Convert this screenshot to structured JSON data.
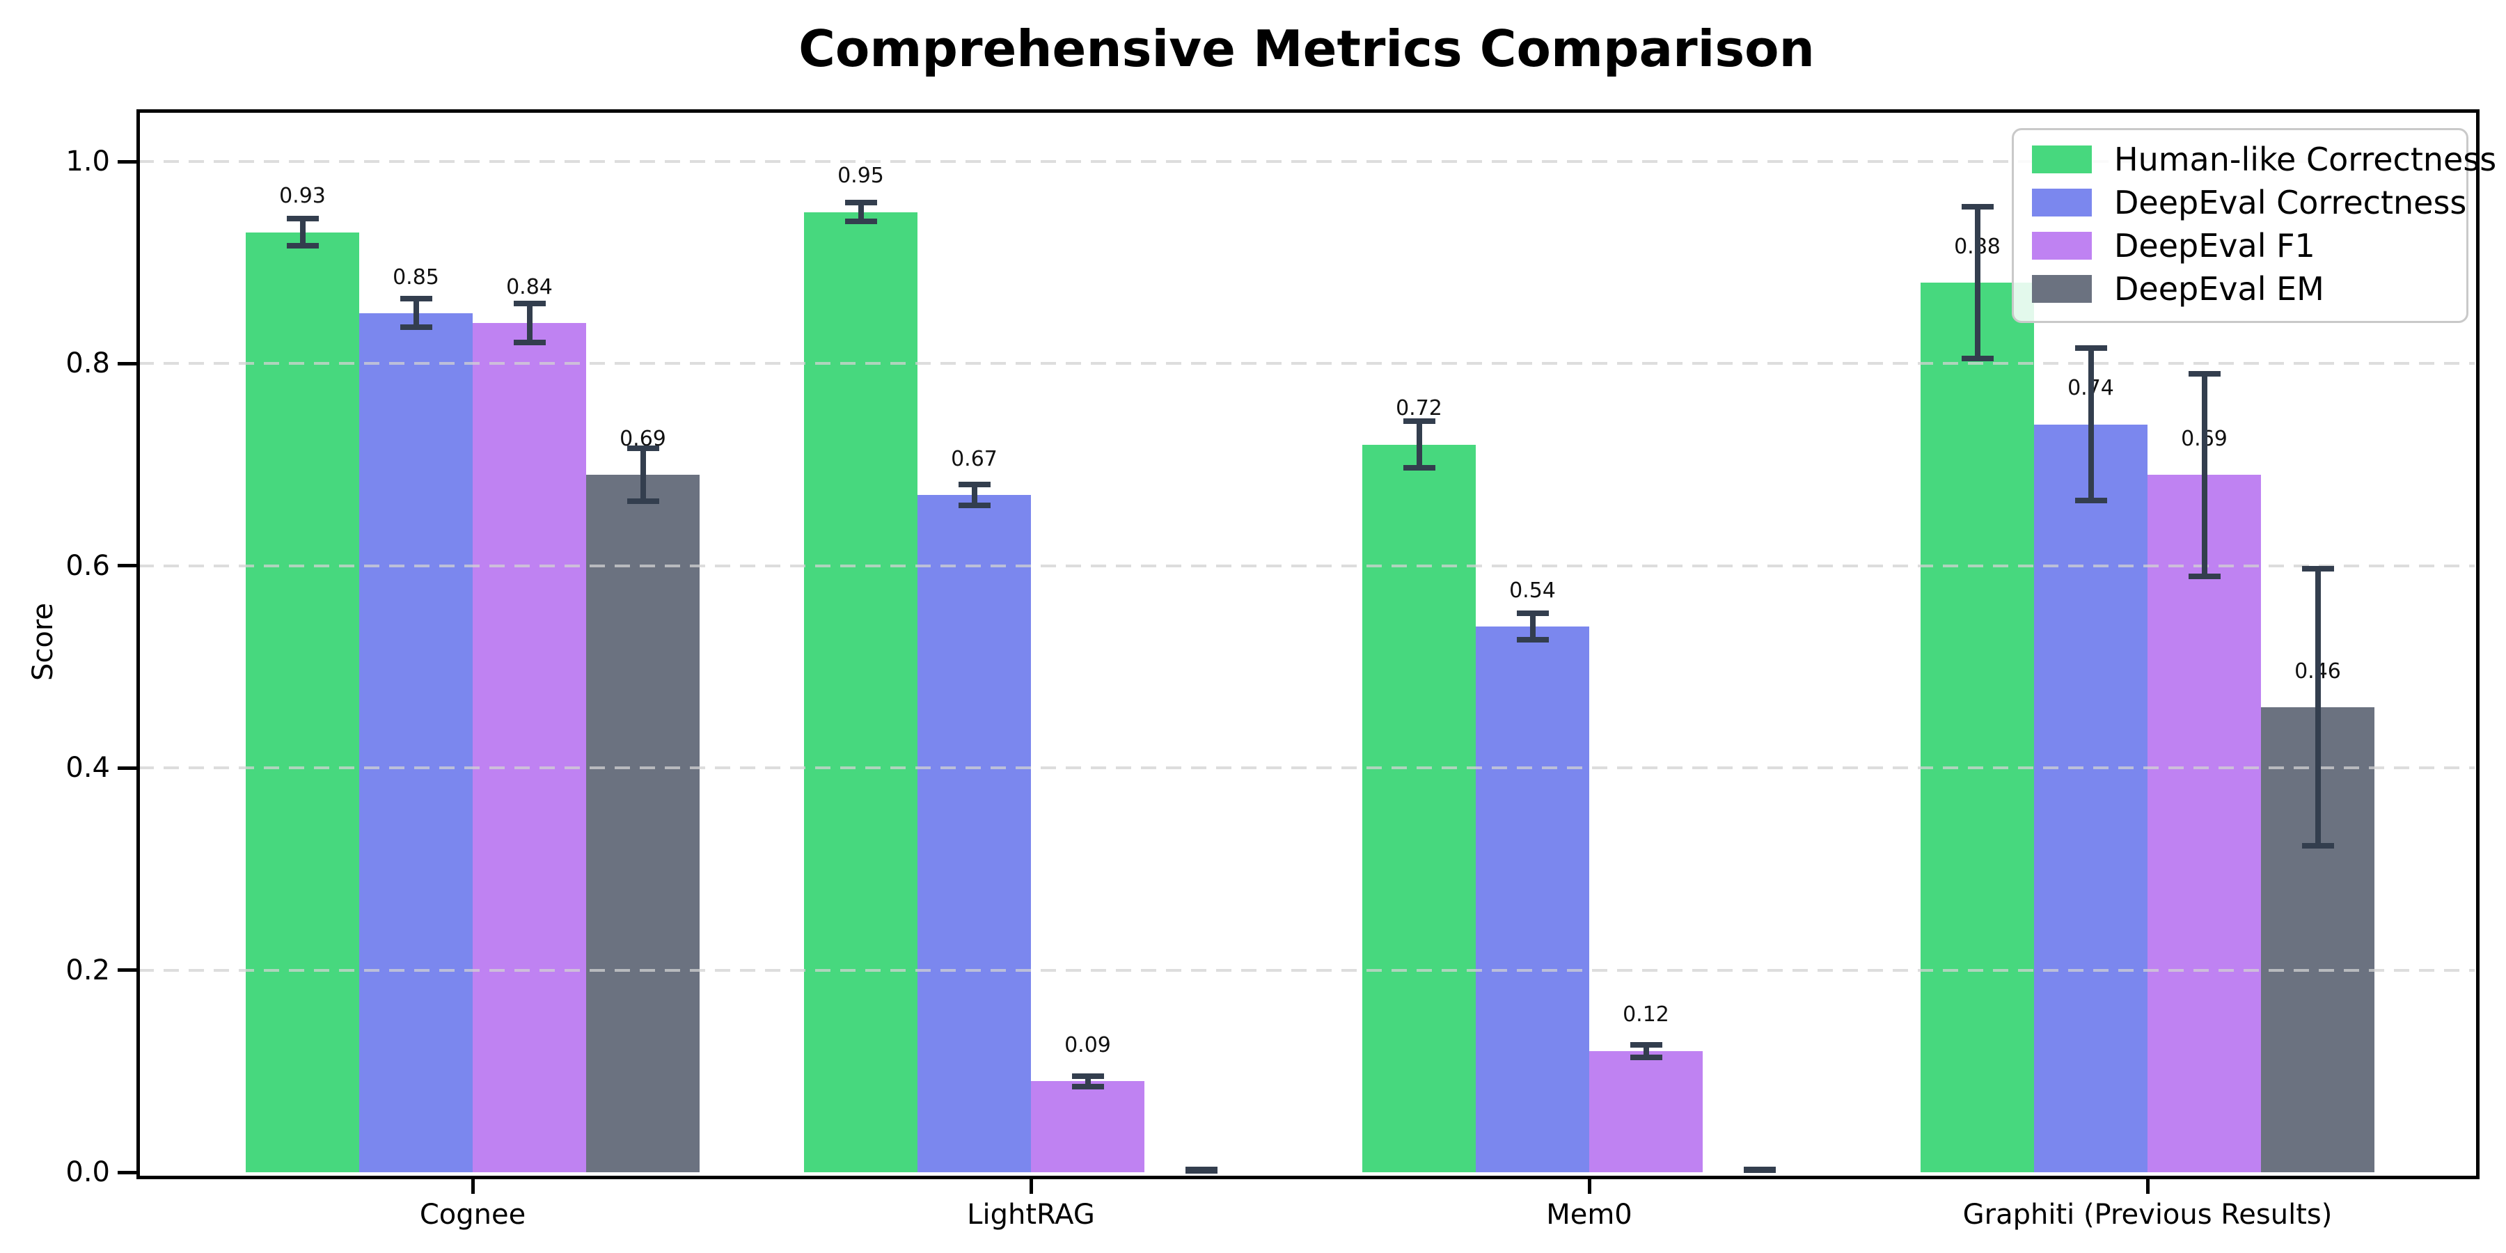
{
  "chart_data": {
    "type": "bar",
    "title": "Comprehensive Metrics Comparison",
    "ylabel": "Score",
    "xlabel": "",
    "categories": [
      "Cognee",
      "LightRAG",
      "Mem0",
      "Graphiti (Previous Results)"
    ],
    "series": [
      {
        "name": "Human-like Correctness",
        "color": "#47d87e",
        "values": [
          0.93,
          0.95,
          0.72,
          0.88
        ],
        "errors": [
          0.016,
          0.012,
          0.026,
          0.078
        ]
      },
      {
        "name": "DeepEval Correctness",
        "color": "#7b87ee",
        "values": [
          0.85,
          0.67,
          0.54,
          0.74
        ],
        "errors": [
          0.017,
          0.013,
          0.016,
          0.078
        ]
      },
      {
        "name": "DeepEval F1",
        "color": "#bf82f2",
        "values": [
          0.84,
          0.09,
          0.12,
          0.69
        ],
        "errors": [
          0.022,
          0.008,
          0.009,
          0.103
        ]
      },
      {
        "name": "DeepEval EM",
        "color": "#6b7280",
        "values": [
          0.69,
          0.0,
          0.0,
          0.46
        ],
        "errors": [
          0.029,
          0.004,
          0.005,
          0.14
        ]
      }
    ],
    "ylim": [
      0,
      1.05
    ],
    "yticks": [
      "0.0",
      "0.2",
      "0.4",
      "0.6",
      "0.8",
      "1.0"
    ],
    "grid": "horizontal-dashed",
    "gridline_color": "#d2d2d2",
    "legend_position": "upper-right",
    "value_labels": "shown above bars, 2 decimals, hidden for zero bars",
    "error_bar_color": "#333e4e",
    "background_color": "#ffffff",
    "spine_color": "#000000"
  }
}
